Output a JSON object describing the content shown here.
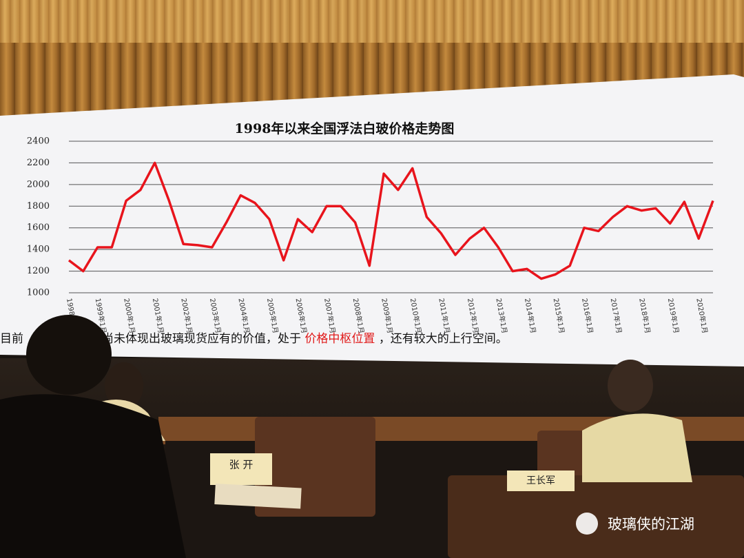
{
  "chart_data": {
    "type": "line",
    "title": "1998年以来全国浮法白玻价格走势图",
    "categories": [
      "1998年1月",
      null,
      "1999年1月",
      null,
      "2000年1月",
      null,
      "2001年1月",
      null,
      "2002年1月",
      null,
      "2003年1月",
      null,
      "2004年1月",
      null,
      "2005年1月",
      null,
      "2006年1月",
      null,
      "2007年1月",
      null,
      "2008年1月",
      null,
      "2009年1月",
      null,
      "2010年1月",
      null,
      "2011年1月",
      null,
      "2012年1月",
      null,
      "2013年1月",
      null,
      "2014年1月",
      null,
      "2015年1月",
      null,
      "2016年1月",
      null,
      "2017年1月",
      null,
      "2018年1月",
      null,
      "2019年1月",
      null,
      "2020年1月",
      null
    ],
    "series": [
      {
        "color": "#e8141c",
        "values": [
          1300,
          1200,
          1420,
          1420,
          1850,
          1950,
          2200,
          1850,
          1450,
          1440,
          1420,
          1650,
          1900,
          1830,
          1680,
          1300,
          1680,
          1560,
          1800,
          1800,
          1650,
          1250,
          2100,
          1950,
          2150,
          1700,
          1550,
          1350,
          1500,
          1600,
          1420,
          1200,
          1220,
          1130,
          1170,
          1250,
          1600,
          1570,
          1700,
          1800,
          1760,
          1780,
          1640,
          1840,
          1500,
          1850
        ]
      }
    ],
    "ylim": [
      1000,
      2400
    ],
    "yticks": [
      1000,
      1200,
      1400,
      1600,
      1800,
      2000,
      2200,
      2400
    ],
    "grid": true
  },
  "caption": {
    "lead": "目前",
    "before": "尚未体现出玻璃现货应有的价值，处于",
    "highlight": "价格中枢位置",
    "after": "，还有较大的上行空间。"
  },
  "scene": {
    "nameplates": [
      "张 开",
      "王长军"
    ],
    "watermark": "玻璃侠的江湖"
  }
}
